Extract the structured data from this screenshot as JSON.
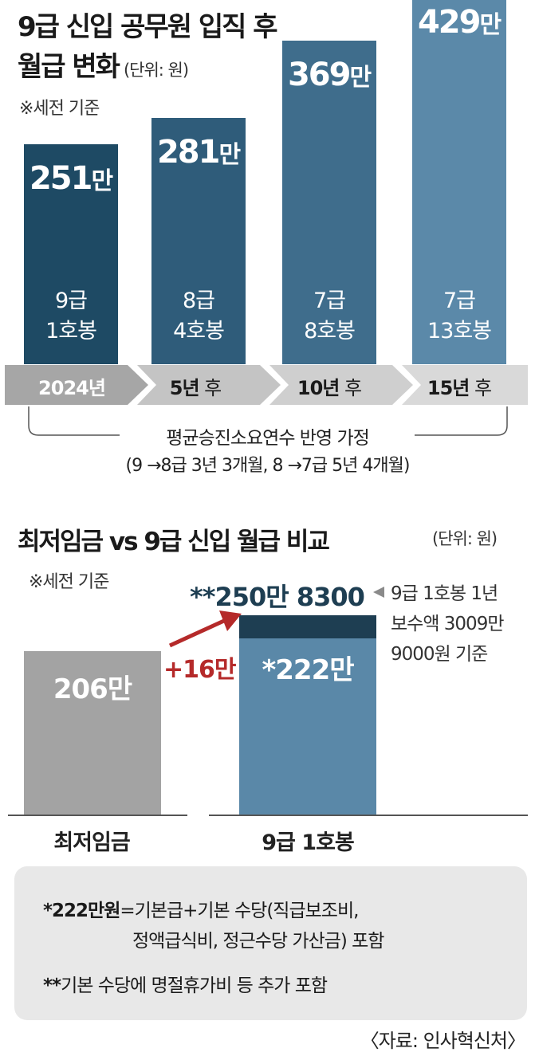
{
  "title_line1": "9급 신입 공무원 입직 후",
  "title_line2": "월급 변화",
  "title_unit": "(단위: 원)",
  "note_pretax": "※세전 기준",
  "colors": {
    "bar_2024": "#1e4a64",
    "bar_5y": "#2f5c7a",
    "bar_10y": "#3f6d8c",
    "bar_15y": "#5b89a9",
    "bar_min_wage": "#a3a3a3",
    "bar_9grade": "#5a88a8",
    "bar_9grade_extra": "#1e3e52",
    "increase": "#b52a2a",
    "timeline": "#b8b8b8"
  },
  "chart_data": [
    {
      "type": "bar",
      "title": "9급 신입 공무원 입직 후 월급 변화",
      "unit": "(단위: 원)",
      "categories": [
        "2024년",
        "5년 후",
        "10년 후",
        "15년 후"
      ],
      "values": [
        2510000,
        2810000,
        3690000,
        4290000
      ],
      "value_labels": [
        "251",
        "281",
        "369",
        "429"
      ],
      "value_suffix": "만",
      "grades": [
        "9급",
        "8급",
        "7급",
        "7급"
      ],
      "steps": [
        "1호봉",
        "4호봉",
        "8호봉",
        "13호봉"
      ],
      "assumption": "평균승진소요연수 반영 가정",
      "assumption_detail": "(9 →8급 3년 3개월, 8 →7급 5년 4개월)"
    },
    {
      "type": "bar",
      "title": "최저임금 vs 9급 신입 월급 비교",
      "unit": "(단위: 원)",
      "categories": [
        "최저임금",
        "9급 1호봉"
      ],
      "values": [
        2060000,
        2220000
      ],
      "value_labels": [
        "206만",
        "*222만"
      ],
      "total_value": 2508300,
      "total_label": "**250만 8300",
      "difference_label": "+16만",
      "side_note": [
        "9급 1호봉 1년",
        "보수액 3009만",
        "9000원 기준"
      ]
    }
  ],
  "footnotes": {
    "fn1_bold": "*222만원",
    "fn1_line1": "=기본급+기본 수당(직급보조비,",
    "fn1_line2": "정액급식비, 정근수당 가산금) 포함",
    "fn2_bold": "**",
    "fn2_text": "기본 수당에 명절휴가비 등 추가 포함"
  },
  "source": "〈자료: 인사혁신처〉"
}
